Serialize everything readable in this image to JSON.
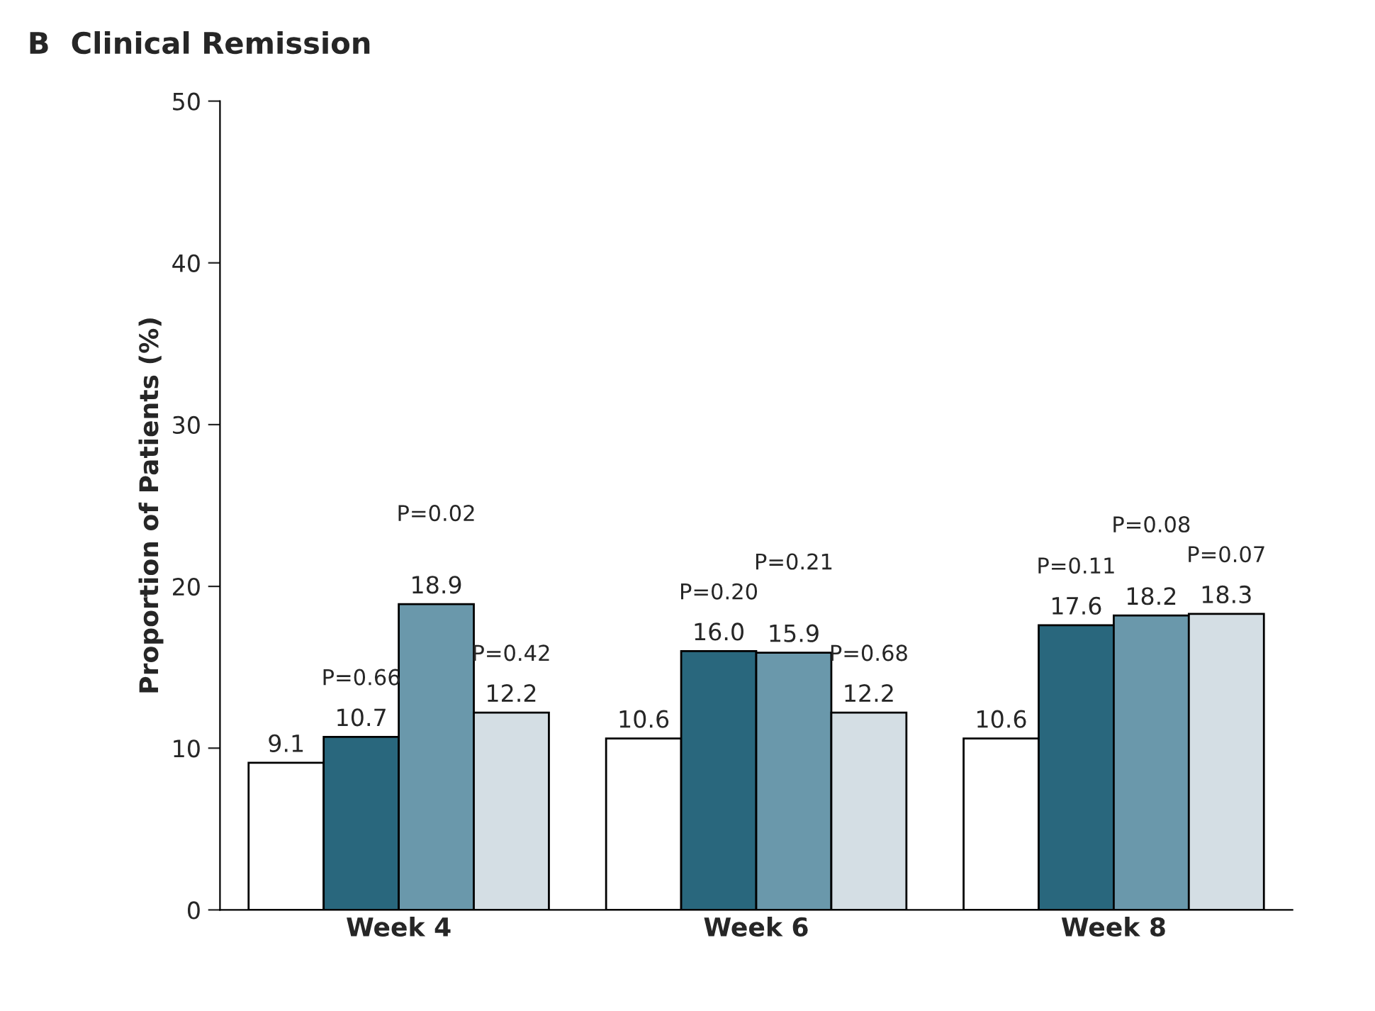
{
  "chart_data": {
    "type": "bar",
    "title": "B  Clinical Remission",
    "ylabel": "Proportion of Patients (%)",
    "categories": [
      "Week 4",
      "Week 6",
      "Week 8"
    ],
    "series": [
      {
        "color": "#ffffff",
        "values": [
          9.1,
          10.6,
          10.6
        ],
        "value_labels": [
          "9.1",
          "10.6",
          "10.6"
        ]
      },
      {
        "color": "#29677d",
        "values": [
          10.7,
          16.0,
          17.6
        ],
        "value_labels": [
          "10.7",
          "16.0",
          "17.6"
        ]
      },
      {
        "color": "#6a98ab",
        "values": [
          18.9,
          15.9,
          18.2
        ],
        "value_labels": [
          "18.9",
          "15.9",
          "18.2"
        ]
      },
      {
        "color": "#d4dee4",
        "values": [
          12.2,
          12.2,
          18.3
        ],
        "value_labels": [
          "12.2",
          "12.2",
          "18.3"
        ]
      }
    ],
    "ylim": [
      0,
      50
    ],
    "yticks": [
      0,
      10,
      20,
      30,
      40,
      50
    ],
    "grid": false,
    "legend": false,
    "annotations": [
      "P=0.66",
      "P=0.02",
      "P=0.42",
      "P=0.20",
      "P=0.21",
      "P=0.68",
      "P=0.11",
      "P=0.08",
      "P=0.07"
    ]
  }
}
